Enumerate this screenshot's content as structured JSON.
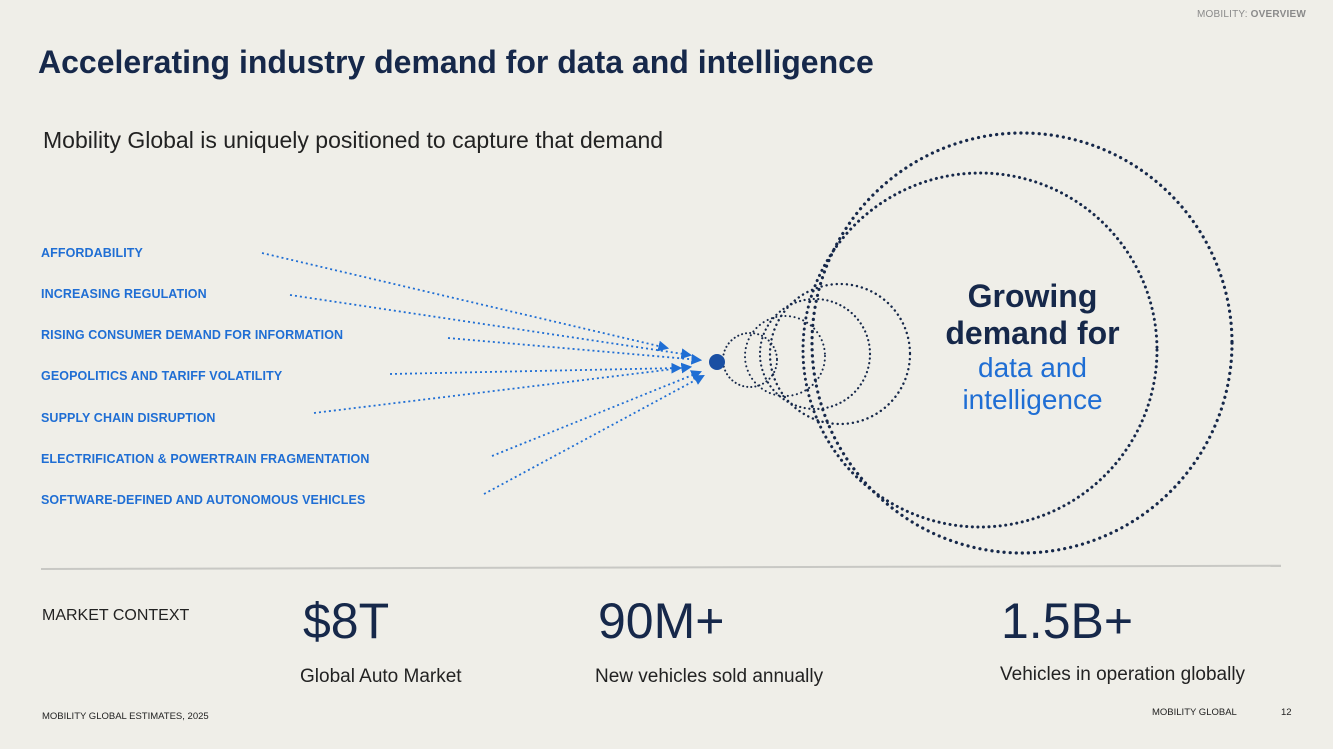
{
  "header": {
    "section_prefix": "MOBILITY: ",
    "section_name": "OVERVIEW",
    "title": "Accelerating industry demand for data and intelligence",
    "subtitle": "Mobility Global is uniquely positioned to capture that demand"
  },
  "drivers": [
    "AFFORDABILITY",
    "INCREASING REGULATION",
    "RISING CONSUMER DEMAND FOR INFORMATION",
    "GEOPOLITICS AND TARIFF VOLATILITY",
    "SUPPLY CHAIN DISRUPTION",
    "ELECTRIFICATION & POWERTRAIN FRAGMENTATION",
    "SOFTWARE-DEFINED AND AUTONOMOUS VEHICLES"
  ],
  "center": {
    "line1": "Growing",
    "line2": "demand for",
    "line3": "data and",
    "line4": "intelligence"
  },
  "market": {
    "label": "MARKET CONTEXT",
    "stats": [
      {
        "value": "$8T",
        "label": "Global Auto Market"
      },
      {
        "value": "90M+",
        "label": "New vehicles sold annually"
      },
      {
        "value": "1.5B+",
        "label": "Vehicles in operation globally"
      }
    ]
  },
  "footer": {
    "source": "MOBILITY GLOBAL ESTIMATES, 2025",
    "brand": "MOBILITY GLOBAL",
    "page": "12"
  },
  "colors": {
    "accent": "#1f6ed4",
    "navy": "#16284a",
    "background": "#efeee8"
  }
}
